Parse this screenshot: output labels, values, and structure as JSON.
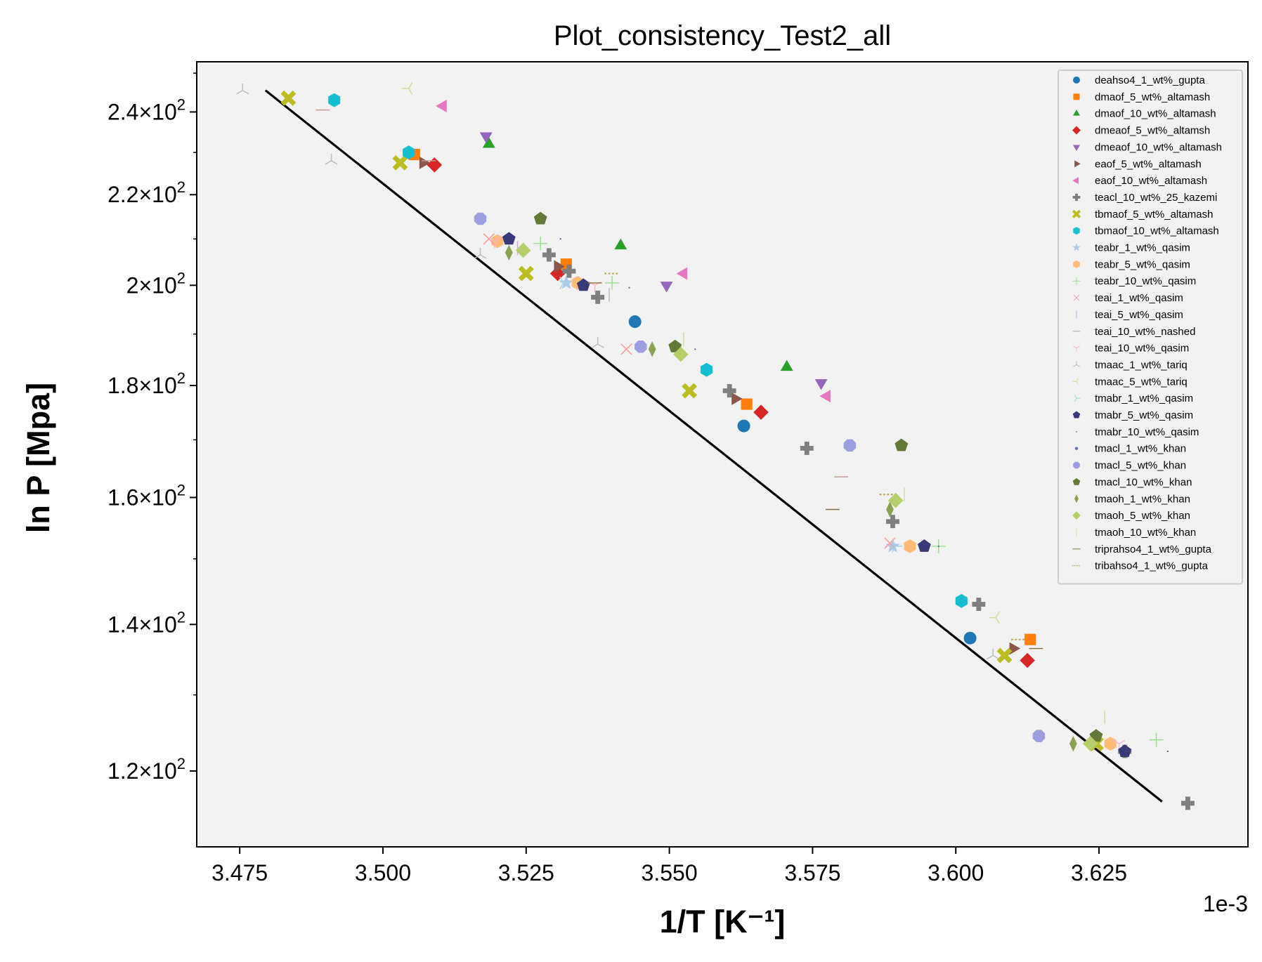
{
  "chart_data": {
    "type": "scatter",
    "title": "Plot_consistency_Test2_all",
    "xlabel": "1/T [K⁻¹]",
    "ylabel": "ln P [Mpa]",
    "x_offset_label": "1e-3",
    "xlim": [
      3.4675,
      3.651
    ],
    "ylim": [
      110.8,
      253
    ],
    "y_scale": "log",
    "x_ticks": [
      3.475,
      3.5,
      3.525,
      3.55,
      3.575,
      3.6,
      3.625
    ],
    "x_tick_labels": [
      "3.475",
      "3.500",
      "3.525",
      "3.550",
      "3.575",
      "3.600",
      "3.625"
    ],
    "y_ticks": [
      {
        "value": 120,
        "mantissa": "1.2",
        "base": "10",
        "exp": "2"
      },
      {
        "value": 140,
        "mantissa": "1.4",
        "base": "10",
        "exp": "2"
      },
      {
        "value": 160,
        "mantissa": "1.6",
        "base": "10",
        "exp": "2"
      },
      {
        "value": 180,
        "mantissa": "1.8",
        "base": "10",
        "exp": "2"
      },
      {
        "value": 200,
        "mantissa": "2",
        "base": "10",
        "exp": "2"
      },
      {
        "value": 220,
        "mantissa": "2.2",
        "base": "10",
        "exp": "2"
      },
      {
        "value": 240,
        "mantissa": "2.4",
        "base": "10",
        "exp": "2"
      }
    ],
    "legend_position": "top-right",
    "grid": false,
    "fit_line": {
      "color": "#000000",
      "points": [
        [
          3.4795,
          245.5
        ],
        [
          3.636,
          116.2
        ]
      ]
    },
    "series": [
      {
        "name": "deahso4_1_wt%_gupta",
        "marker": "circle",
        "color": "#1f77b4",
        "points": [
          [
            3.544,
            192.5
          ],
          [
            3.563,
            172.5
          ],
          [
            3.6025,
            138
          ]
        ]
      },
      {
        "name": "dmaof_5_wt%_altamash",
        "marker": "square",
        "color": "#ff7f0e",
        "points": [
          [
            3.5055,
            229.5
          ],
          [
            3.532,
            204.5
          ],
          [
            3.5635,
            176.5
          ],
          [
            3.613,
            137.8
          ]
        ]
      },
      {
        "name": "dmaof_10_wt%_altamash",
        "marker": "triangle-up",
        "color": "#2ca02c",
        "points": [
          [
            3.5185,
            232
          ],
          [
            3.5415,
            208.5
          ],
          [
            3.5705,
            183.5
          ]
        ]
      },
      {
        "name": "dmeaof_5_wt%_altamsh",
        "marker": "diamond",
        "color": "#d62728",
        "points": [
          [
            3.509,
            227
          ],
          [
            3.5305,
            202.5
          ],
          [
            3.566,
            175
          ],
          [
            3.6125,
            134.8
          ]
        ]
      },
      {
        "name": "dmeaof_10_wt%_altamash",
        "marker": "triangle-down",
        "color": "#9467bd",
        "points": [
          [
            3.518,
            234
          ],
          [
            3.5495,
            200
          ],
          [
            3.5765,
            180.5
          ]
        ]
      },
      {
        "name": "eaof_5_wt%_altamash",
        "marker": "triangle-right",
        "color": "#8c564b",
        "points": [
          [
            3.507,
            227.5
          ],
          [
            3.5305,
            204
          ],
          [
            3.5615,
            177.5
          ],
          [
            3.61,
            136.5
          ]
        ]
      },
      {
        "name": "eaof_10_wt%_altamash",
        "marker": "triangle-left",
        "color": "#e377c2",
        "points": [
          [
            3.5105,
            241.5
          ],
          [
            3.5525,
            202.5
          ],
          [
            3.5775,
            178
          ]
        ]
      },
      {
        "name": "teacl_10_wt%_25_kazemi",
        "marker": "plus-thick",
        "color": "#7f7f7f",
        "points": [
          [
            3.529,
            206.5
          ],
          [
            3.5325,
            203
          ],
          [
            3.5375,
            197.5
          ],
          [
            3.5605,
            179
          ],
          [
            3.574,
            168.5
          ],
          [
            3.589,
            156
          ],
          [
            3.604,
            143
          ],
          [
            3.6295,
            122.5
          ],
          [
            3.6405,
            116
          ]
        ]
      },
      {
        "name": "tbmaof_5_wt%_altamash",
        "marker": "x-thick",
        "color": "#bcbd22",
        "points": [
          [
            3.4835,
            243.5
          ],
          [
            3.503,
            227.5
          ],
          [
            3.525,
            202.5
          ],
          [
            3.5535,
            179
          ],
          [
            3.6085,
            135.5
          ],
          [
            3.6245,
            123.5
          ]
        ]
      },
      {
        "name": "tbmaof_10_wt%_altamash",
        "marker": "hexagon",
        "color": "#17becf",
        "points": [
          [
            3.4915,
            243
          ],
          [
            3.5045,
            230
          ],
          [
            3.5565,
            183
          ],
          [
            3.601,
            143.5
          ]
        ]
      },
      {
        "name": "teabr_1_wt%_qasim",
        "marker": "star",
        "color": "#aec7e8",
        "points": [
          [
            3.532,
            200.5
          ],
          [
            3.589,
            152
          ]
        ]
      },
      {
        "name": "teabr_5_wt%_qasim",
        "marker": "hexagon",
        "color": "#ffbb78",
        "points": [
          [
            3.52,
            209.5
          ],
          [
            3.534,
            200.5
          ],
          [
            3.592,
            152
          ],
          [
            3.627,
            123.5
          ]
        ]
      },
      {
        "name": "teabr_10_wt%_qasim",
        "marker": "plus",
        "color": "#98df8a",
        "points": [
          [
            3.5275,
            209
          ],
          [
            3.54,
            200.5
          ],
          [
            3.597,
            152
          ],
          [
            3.635,
            124
          ]
        ]
      },
      {
        "name": "teai_1_wt%_qasim",
        "marker": "x",
        "color": "#ff9896",
        "points": [
          [
            3.5185,
            210
          ],
          [
            3.5425,
            187
          ],
          [
            3.5885,
            152.5
          ]
        ]
      },
      {
        "name": "teai_5_wt%_qasim",
        "marker": "vline",
        "color": "#c5b0d5",
        "points": [
          [
            3.5235,
            208
          ],
          [
            3.5395,
            198
          ]
        ]
      },
      {
        "name": "teai_10_wt%_nashed",
        "marker": "hline",
        "color": "#c49c94",
        "points": [
          [
            3.4895,
            240.5
          ],
          [
            3.508,
            228
          ],
          [
            3.58,
            163.5
          ]
        ]
      },
      {
        "name": "teai_10_wt%_qasim",
        "marker": "tri-down",
        "color": "#f7b6d2",
        "points": [
          [
            3.5195,
            209.5
          ],
          [
            3.537,
            200
          ],
          [
            3.6285,
            123.5
          ]
        ]
      },
      {
        "name": "tmaac_1_wt%_tariq",
        "marker": "tri-up",
        "color": "#bbbbbb",
        "points": [
          [
            3.4755,
            245.5
          ],
          [
            3.491,
            228
          ],
          [
            3.517,
            206.5
          ],
          [
            3.5375,
            188
          ],
          [
            3.6065,
            135.5
          ]
        ]
      },
      {
        "name": "tmaac_5_wt%_tariq",
        "marker": "tri-left",
        "color": "#dbdb8d",
        "points": [
          [
            3.5045,
            246
          ],
          [
            3.607,
            141
          ]
        ]
      },
      {
        "name": "tmabr_1_wt%_qasim",
        "marker": "tri-right",
        "color": "#9edae5",
        "points": [
          [
            3.5315,
            200.5
          ],
          [
            3.5895,
            152
          ]
        ]
      },
      {
        "name": "tmabr_5_wt%_qasim",
        "marker": "pentagon",
        "color": "#393b79",
        "points": [
          [
            3.522,
            210
          ],
          [
            3.535,
            200
          ],
          [
            3.5945,
            152
          ],
          [
            3.6295,
            122.5
          ]
        ]
      },
      {
        "name": "tmabr_10_wt%_qasim",
        "marker": "point",
        "color": "#5254a3",
        "points": [
          [
            3.531,
            210
          ],
          [
            3.543,
            199.5
          ],
          [
            3.5545,
            187
          ],
          [
            3.597,
            152
          ],
          [
            3.637,
            122.5
          ]
        ]
      },
      {
        "name": "tmacl_1_wt%_khan",
        "marker": "dot",
        "color": "#6b6ecf",
        "points": [
          [
            3.5455,
            187.5
          ]
        ]
      },
      {
        "name": "tmacl_5_wt%_khan",
        "marker": "octagon",
        "color": "#9c9ede",
        "points": [
          [
            3.517,
            214.5
          ],
          [
            3.545,
            187.5
          ],
          [
            3.5815,
            169
          ],
          [
            3.6145,
            124.5
          ]
        ]
      },
      {
        "name": "tmacl_10_wt%_khan",
        "marker": "pentagon",
        "color": "#637939",
        "points": [
          [
            3.5275,
            214.5
          ],
          [
            3.551,
            187.5
          ],
          [
            3.5905,
            169
          ],
          [
            3.6245,
            124.5
          ]
        ]
      },
      {
        "name": "tmaoh_1_wt%_khan",
        "marker": "thin-diamond",
        "color": "#8ca252",
        "points": [
          [
            3.522,
            207
          ],
          [
            3.547,
            187
          ],
          [
            3.5885,
            158
          ],
          [
            3.6205,
            123.5
          ]
        ]
      },
      {
        "name": "tmaoh_5_wt%_khan",
        "marker": "diamond",
        "color": "#b5cf6b",
        "points": [
          [
            3.5245,
            207.5
          ],
          [
            3.552,
            186
          ],
          [
            3.5895,
            159.5
          ],
          [
            3.6235,
            123.5
          ]
        ]
      },
      {
        "name": "tmaoh_10_wt%_khan",
        "marker": "vline",
        "color": "#cedb9c",
        "points": [
          [
            3.5525,
            189
          ],
          [
            3.591,
            160.5
          ],
          [
            3.626,
            127
          ]
        ]
      },
      {
        "name": "triprahso4_1_wt%_gupta",
        "marker": "hline",
        "color": "#8c6d31",
        "points": [
          [
            3.537,
            200.5
          ],
          [
            3.5785,
            158
          ],
          [
            3.614,
            136.5
          ]
        ]
      },
      {
        "name": "tribahso4_1_wt%_gupta",
        "marker": "dotted-line",
        "color": "#bd9e39",
        "points": [
          [
            3.54,
            202.5
          ],
          [
            3.588,
            160.5
          ],
          [
            3.611,
            137.8
          ]
        ]
      }
    ]
  }
}
